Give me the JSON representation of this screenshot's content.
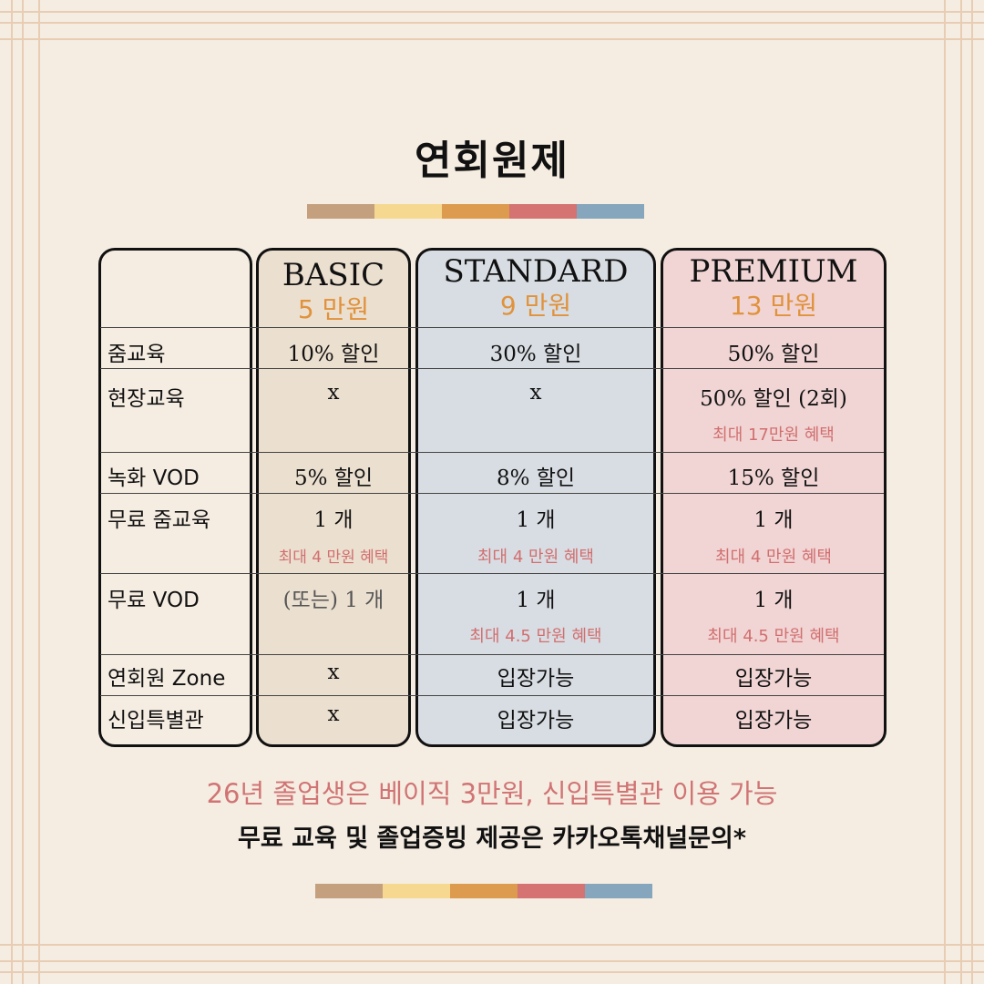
{
  "title": "연회원제",
  "colors": {
    "background": "#f5ede2",
    "palette": [
      "#c4a07f",
      "#f6d891",
      "#dc9b4e",
      "#d47372",
      "#85a6bd"
    ],
    "basic_bg": "#ebdfcf",
    "standard_bg": "#d8dde3",
    "premium_bg": "#f1d4d4",
    "price_color": "#e0923c",
    "note_color": "#d16f6f"
  },
  "plans": [
    {
      "name": "BASIC",
      "price": "5 만원"
    },
    {
      "name": "STANDARD",
      "price": "9 만원"
    },
    {
      "name": "PREMIUM",
      "price": "13 만원"
    }
  ],
  "rows": [
    {
      "label": "줌교육",
      "basic": "10% 할인",
      "standard": "30% 할인",
      "premium": "50% 할인"
    },
    {
      "label": "현장교육",
      "basic": "x",
      "standard": "x",
      "premium": "50% 할인 (2회)",
      "premium_note": "최대 17만원 혜택"
    },
    {
      "label": "녹화 VOD",
      "basic": "5% 할인",
      "standard": "8% 할인",
      "premium": "15% 할인"
    },
    {
      "label": "무료 줌교육",
      "basic": "1 개",
      "standard": "1 개",
      "premium": "1 개",
      "basic_note": "최대 4 만원 혜택",
      "standard_note": "최대 4 만원 혜택",
      "premium_note": "최대 4 만원 혜택"
    },
    {
      "label": "무료 VOD",
      "basic": "(또는) 1 개",
      "standard": "1 개",
      "premium": "1 개",
      "standard_note": "최대 4.5 만원 혜택",
      "premium_note": "최대 4.5 만원 혜택"
    },
    {
      "label": "연회원 Zone",
      "basic": "x",
      "standard": "입장가능",
      "premium": "입장가능"
    },
    {
      "label": "신입특별관",
      "basic": "x",
      "standard": "입장가능",
      "premium": "입장가능"
    }
  ],
  "footer": {
    "line1": "26년 졸업생은 베이직 3만원, 신입특별관 이용 가능",
    "line2": "무료 교육 및 졸업증빙 제공은 카카오톡채널문의*"
  }
}
